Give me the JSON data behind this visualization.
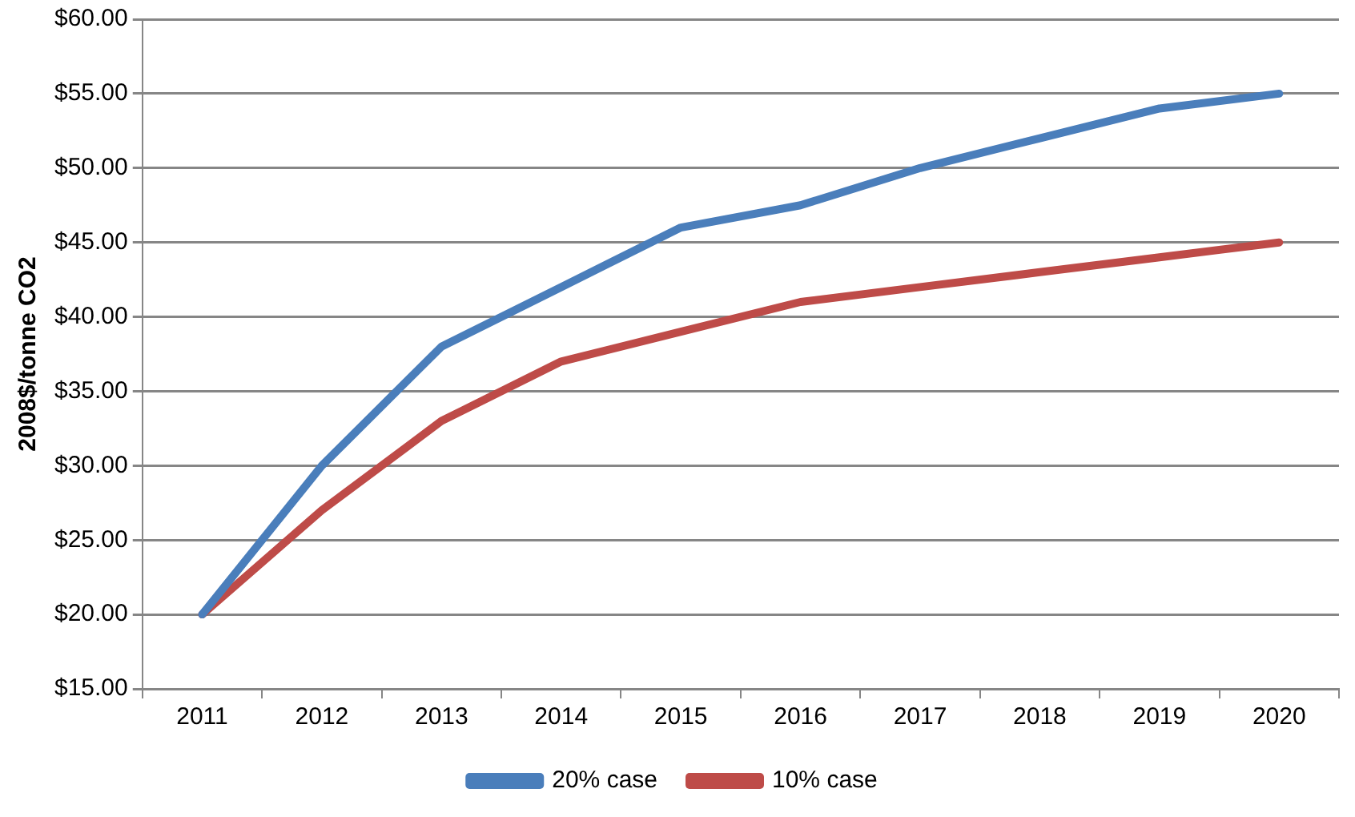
{
  "chart_data": {
    "type": "line",
    "ylabel": "2008$/tonne CO2",
    "categories": [
      "2011",
      "2012",
      "2013",
      "2014",
      "2015",
      "2016",
      "2017",
      "2018",
      "2019",
      "2020"
    ],
    "series": [
      {
        "name": "20% case",
        "color": "#4a7ebb",
        "values": [
          20,
          30,
          38,
          42,
          46,
          47.5,
          50,
          52,
          54,
          55
        ]
      },
      {
        "name": "10% case",
        "color": "#be4b48",
        "values": [
          20,
          27,
          33,
          37,
          39,
          41,
          42,
          43,
          44,
          45
        ]
      }
    ],
    "ylim": [
      15,
      60
    ],
    "yticks": [
      {
        "value": 15,
        "label": "$15.00"
      },
      {
        "value": 20,
        "label": "$20.00"
      },
      {
        "value": 25,
        "label": "$25.00"
      },
      {
        "value": 30,
        "label": "$30.00"
      },
      {
        "value": 35,
        "label": "$35.00"
      },
      {
        "value": 40,
        "label": "$40.00"
      },
      {
        "value": 45,
        "label": "$45.00"
      },
      {
        "value": 50,
        "label": "$50.00"
      },
      {
        "value": 55,
        "label": "$55.00"
      },
      {
        "value": 60,
        "label": "$60.00"
      }
    ],
    "grid": "y",
    "legend": "bottom",
    "marker": "none",
    "line_style": "solid"
  }
}
